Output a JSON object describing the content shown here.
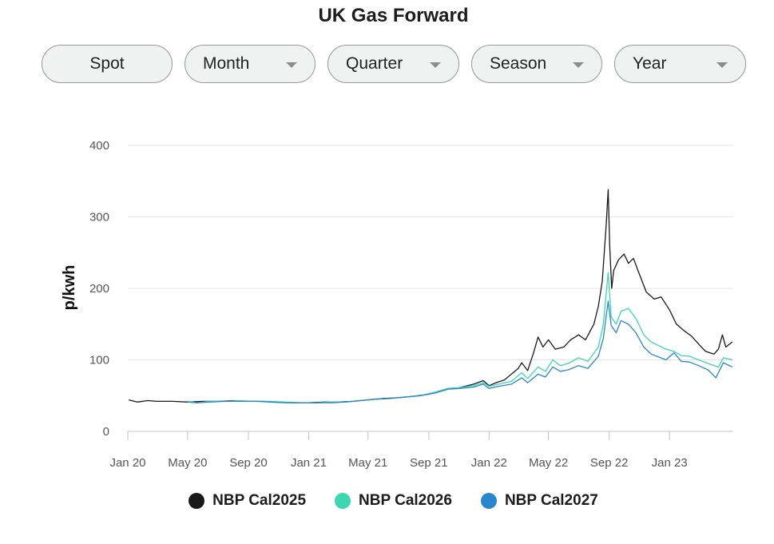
{
  "page": {
    "title": "UK Gas Forward"
  },
  "tabs": [
    {
      "label": "Spot",
      "dropdown": false
    },
    {
      "label": "Month",
      "dropdown": true
    },
    {
      "label": "Quarter",
      "dropdown": true
    },
    {
      "label": "Season",
      "dropdown": true
    },
    {
      "label": "Year",
      "dropdown": true
    }
  ],
  "chart_data": {
    "type": "line",
    "title": "",
    "xlabel": "",
    "ylabel": "p/kwh",
    "ylim": [
      0,
      400
    ],
    "yticks": [
      0,
      100,
      200,
      300,
      400
    ],
    "xlim": [
      "2020-01-01",
      "2023-05-10"
    ],
    "xticks": [
      {
        "date": "2020-01-01",
        "label": "Jan 20"
      },
      {
        "date": "2020-05-01",
        "label": "May 20"
      },
      {
        "date": "2020-09-01",
        "label": "Sep 20"
      },
      {
        "date": "2021-01-01",
        "label": "Jan 21"
      },
      {
        "date": "2021-05-01",
        "label": "May 21"
      },
      {
        "date": "2021-09-01",
        "label": "Sep 21"
      },
      {
        "date": "2022-01-01",
        "label": "Jan 22"
      },
      {
        "date": "2022-05-01",
        "label": "May 22"
      },
      {
        "date": "2022-09-01",
        "label": "Sep 22"
      },
      {
        "date": "2023-01-01",
        "label": "Jan 23"
      }
    ],
    "grid": "horizontal",
    "legend_position": "bottom",
    "series": [
      {
        "name": "NBP Cal2025",
        "color": "#1a1a1a",
        "points": [
          [
            "2020-01-03",
            44
          ],
          [
            "2020-01-20",
            41
          ],
          [
            "2020-02-10",
            43
          ],
          [
            "2020-03-01",
            42
          ],
          [
            "2020-04-01",
            42
          ],
          [
            "2020-05-01",
            41
          ],
          [
            "2020-06-01",
            42
          ],
          [
            "2020-07-01",
            42
          ],
          [
            "2020-08-01",
            43
          ],
          [
            "2020-09-01",
            42
          ],
          [
            "2020-10-01",
            42
          ],
          [
            "2020-11-01",
            41
          ],
          [
            "2020-12-01",
            40
          ],
          [
            "2021-01-01",
            40
          ],
          [
            "2021-02-01",
            41
          ],
          [
            "2021-03-01",
            41
          ],
          [
            "2021-04-01",
            42
          ],
          [
            "2021-05-01",
            44
          ],
          [
            "2021-06-01",
            46
          ],
          [
            "2021-07-01",
            47
          ],
          [
            "2021-08-01",
            49
          ],
          [
            "2021-09-01",
            52
          ],
          [
            "2021-09-20",
            56
          ],
          [
            "2021-10-10",
            60
          ],
          [
            "2021-11-01",
            61
          ],
          [
            "2021-12-01",
            66
          ],
          [
            "2021-12-20",
            71
          ],
          [
            "2022-01-01",
            64
          ],
          [
            "2022-01-15",
            68
          ],
          [
            "2022-02-01",
            72
          ],
          [
            "2022-02-15",
            80
          ],
          [
            "2022-03-01",
            88
          ],
          [
            "2022-03-08",
            96
          ],
          [
            "2022-03-20",
            85
          ],
          [
            "2022-04-01",
            110
          ],
          [
            "2022-04-10",
            132
          ],
          [
            "2022-04-20",
            118
          ],
          [
            "2022-05-01",
            128
          ],
          [
            "2022-05-15",
            115
          ],
          [
            "2022-06-01",
            118
          ],
          [
            "2022-06-15",
            128
          ],
          [
            "2022-07-01",
            135
          ],
          [
            "2022-07-15",
            128
          ],
          [
            "2022-08-01",
            150
          ],
          [
            "2022-08-10",
            175
          ],
          [
            "2022-08-18",
            210
          ],
          [
            "2022-08-26",
            290
          ],
          [
            "2022-08-30",
            338
          ],
          [
            "2022-09-02",
            260
          ],
          [
            "2022-09-06",
            200
          ],
          [
            "2022-09-10",
            225
          ],
          [
            "2022-09-20",
            240
          ],
          [
            "2022-10-01",
            248
          ],
          [
            "2022-10-10",
            235
          ],
          [
            "2022-10-20",
            242
          ],
          [
            "2022-11-01",
            220
          ],
          [
            "2022-11-15",
            195
          ],
          [
            "2022-12-01",
            185
          ],
          [
            "2022-12-15",
            188
          ],
          [
            "2023-01-01",
            170
          ],
          [
            "2023-01-15",
            150
          ],
          [
            "2023-02-01",
            140
          ],
          [
            "2023-02-15",
            133
          ],
          [
            "2023-03-01",
            122
          ],
          [
            "2023-03-15",
            112
          ],
          [
            "2023-04-01",
            108
          ],
          [
            "2023-04-10",
            115
          ],
          [
            "2023-04-18",
            135
          ],
          [
            "2023-04-25",
            118
          ],
          [
            "2023-05-08",
            125
          ]
        ]
      },
      {
        "name": "NBP Cal2026",
        "color": "#3ed6b0",
        "points": [
          [
            "2020-05-01",
            42
          ],
          [
            "2020-05-20",
            40
          ],
          [
            "2020-06-15",
            42
          ],
          [
            "2020-07-15",
            42
          ],
          [
            "2020-08-15",
            43
          ],
          [
            "2020-09-15",
            42
          ],
          [
            "2020-10-15",
            42
          ],
          [
            "2020-11-15",
            41
          ],
          [
            "2020-12-15",
            40
          ],
          [
            "2021-01-15",
            40
          ],
          [
            "2021-02-15",
            41
          ],
          [
            "2021-03-15",
            41
          ],
          [
            "2021-04-15",
            43
          ],
          [
            "2021-05-15",
            45
          ],
          [
            "2021-06-15",
            46
          ],
          [
            "2021-07-15",
            48
          ],
          [
            "2021-08-15",
            50
          ],
          [
            "2021-09-15",
            55
          ],
          [
            "2021-10-10",
            60
          ],
          [
            "2021-11-01",
            61
          ],
          [
            "2021-12-01",
            64
          ],
          [
            "2021-12-20",
            68
          ],
          [
            "2022-01-01",
            63
          ],
          [
            "2022-01-20",
            66
          ],
          [
            "2022-02-15",
            70
          ],
          [
            "2022-03-08",
            82
          ],
          [
            "2022-03-20",
            74
          ],
          [
            "2022-04-10",
            90
          ],
          [
            "2022-04-25",
            84
          ],
          [
            "2022-05-10",
            100
          ],
          [
            "2022-05-25",
            92
          ],
          [
            "2022-06-10",
            95
          ],
          [
            "2022-07-01",
            103
          ],
          [
            "2022-07-20",
            98
          ],
          [
            "2022-08-10",
            118
          ],
          [
            "2022-08-20",
            150
          ],
          [
            "2022-08-30",
            222
          ],
          [
            "2022-09-05",
            160
          ],
          [
            "2022-09-15",
            150
          ],
          [
            "2022-09-25",
            168
          ],
          [
            "2022-10-10",
            172
          ],
          [
            "2022-10-25",
            158
          ],
          [
            "2022-11-10",
            135
          ],
          [
            "2022-11-25",
            125
          ],
          [
            "2022-12-10",
            120
          ],
          [
            "2022-12-25",
            115
          ],
          [
            "2023-01-10",
            112
          ],
          [
            "2023-01-25",
            106
          ],
          [
            "2023-02-10",
            105
          ],
          [
            "2023-03-01",
            100
          ],
          [
            "2023-03-20",
            95
          ],
          [
            "2023-04-10",
            90
          ],
          [
            "2023-04-20",
            103
          ],
          [
            "2023-05-08",
            100
          ]
        ]
      },
      {
        "name": "NBP Cal2027",
        "color": "#2a86cc",
        "points": [
          [
            "2020-05-01",
            41
          ],
          [
            "2020-05-20",
            40
          ],
          [
            "2020-06-15",
            41
          ],
          [
            "2020-07-15",
            42
          ],
          [
            "2020-08-15",
            42
          ],
          [
            "2020-09-15",
            42
          ],
          [
            "2020-10-15",
            41
          ],
          [
            "2020-11-15",
            40
          ],
          [
            "2020-12-15",
            40
          ],
          [
            "2021-01-15",
            40
          ],
          [
            "2021-02-15",
            40
          ],
          [
            "2021-03-15",
            41
          ],
          [
            "2021-04-15",
            43
          ],
          [
            "2021-05-15",
            45
          ],
          [
            "2021-06-15",
            46
          ],
          [
            "2021-07-15",
            48
          ],
          [
            "2021-08-15",
            50
          ],
          [
            "2021-09-15",
            54
          ],
          [
            "2021-10-10",
            59
          ],
          [
            "2021-11-01",
            60
          ],
          [
            "2021-12-01",
            62
          ],
          [
            "2021-12-20",
            66
          ],
          [
            "2022-01-01",
            60
          ],
          [
            "2022-01-20",
            63
          ],
          [
            "2022-02-15",
            66
          ],
          [
            "2022-03-08",
            75
          ],
          [
            "2022-03-20",
            68
          ],
          [
            "2022-04-10",
            80
          ],
          [
            "2022-04-25",
            76
          ],
          [
            "2022-05-10",
            90
          ],
          [
            "2022-05-25",
            84
          ],
          [
            "2022-06-10",
            86
          ],
          [
            "2022-07-01",
            92
          ],
          [
            "2022-07-20",
            88
          ],
          [
            "2022-08-10",
            105
          ],
          [
            "2022-08-20",
            130
          ],
          [
            "2022-08-30",
            182
          ],
          [
            "2022-09-05",
            148
          ],
          [
            "2022-09-15",
            138
          ],
          [
            "2022-09-25",
            155
          ],
          [
            "2022-10-10",
            150
          ],
          [
            "2022-10-25",
            138
          ],
          [
            "2022-11-10",
            118
          ],
          [
            "2022-11-25",
            108
          ],
          [
            "2022-12-10",
            104
          ],
          [
            "2022-12-25",
            100
          ],
          [
            "2023-01-10",
            110
          ],
          [
            "2023-01-25",
            98
          ],
          [
            "2023-02-10",
            97
          ],
          [
            "2023-03-01",
            92
          ],
          [
            "2023-03-20",
            86
          ],
          [
            "2023-04-05",
            75
          ],
          [
            "2023-04-20",
            96
          ],
          [
            "2023-05-08",
            90
          ]
        ]
      }
    ]
  }
}
